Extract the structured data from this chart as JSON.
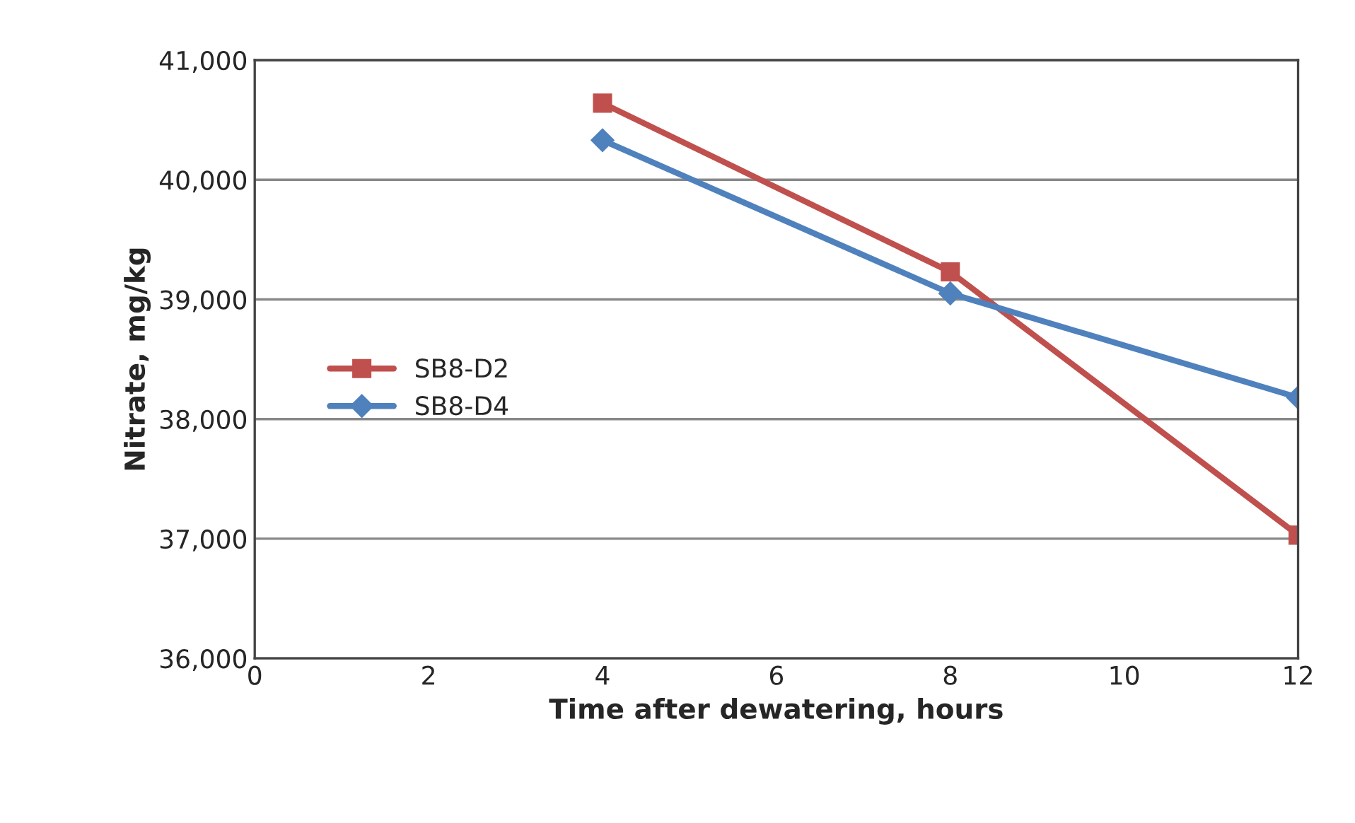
{
  "chart_data": {
    "type": "line",
    "xlabel": "Time after dewatering, hours",
    "ylabel": "Nitrate, mg/kg",
    "x": [
      4,
      8,
      12
    ],
    "series": [
      {
        "name": "SB8-D2",
        "color": "#c0504d",
        "marker": "square",
        "values": [
          40640,
          39230,
          37030
        ]
      },
      {
        "name": "SB8-D4",
        "color": "#4f81bd",
        "marker": "diamond",
        "values": [
          40330,
          39050,
          38180
        ]
      }
    ],
    "xlim": [
      0,
      12
    ],
    "xticks": [
      0,
      2,
      4,
      6,
      8,
      10,
      12
    ],
    "ylim": [
      36000,
      41000
    ],
    "yticks": [
      {
        "value": 36000,
        "label": "36,000"
      },
      {
        "value": 37000,
        "label": "37,000"
      },
      {
        "value": 38000,
        "label": "38,000"
      },
      {
        "value": 39000,
        "label": "39,000"
      },
      {
        "value": 40000,
        "label": "40,000"
      },
      {
        "value": 41000,
        "label": "41,000"
      }
    ],
    "grid": "y",
    "legend": "left"
  }
}
